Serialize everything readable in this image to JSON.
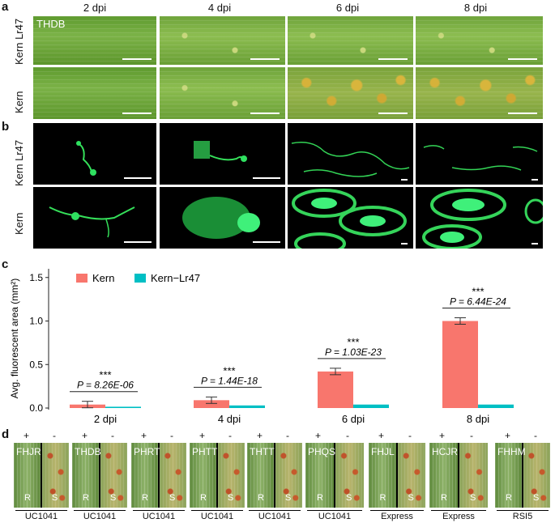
{
  "panel_labels": {
    "a": "a",
    "b": "b",
    "c": "c",
    "d": "d"
  },
  "time_labels": [
    "2 dpi",
    "4 dpi",
    "6 dpi",
    "8 dpi"
  ],
  "row_labels": {
    "kern_lr47": "Kern Lr47",
    "kern": "Kern"
  },
  "thdb_tag": "THDB",
  "chart_data": {
    "type": "bar",
    "ylabel": "Avg. fluorescent area (mm²)",
    "categories": [
      "2 dpi",
      "4 dpi",
      "6 dpi",
      "8 dpi"
    ],
    "ylim": [
      0,
      1.6
    ],
    "yticks": [
      "0.0",
      "0.5",
      "1.0",
      "1.5"
    ],
    "legend_position": "top-left",
    "series": [
      {
        "name": "Kern",
        "color": "#f8766d",
        "values": [
          0.04,
          0.09,
          0.42,
          1.0
        ]
      },
      {
        "name": "Kern−Lr47",
        "color": "#00bfc4",
        "values": [
          0.015,
          0.03,
          0.04,
          0.04
        ]
      }
    ],
    "annotations": [
      {
        "category": "2 dpi",
        "stars": "***",
        "p": "P = 8.26E-06"
      },
      {
        "category": "4 dpi",
        "stars": "***",
        "p": "P = 1.44E-18"
      },
      {
        "category": "6 dpi",
        "stars": "***",
        "p": "P = 1.03E-23"
      },
      {
        "category": "8 dpi",
        "stars": "***",
        "p": "P = 6.44E-24"
      }
    ]
  },
  "panel_d": {
    "plus": "+",
    "minus": "-",
    "r": "R",
    "s": "S",
    "items": [
      {
        "tag": "FHJR"
      },
      {
        "tag": "THDB"
      },
      {
        "tag": "PHRT"
      },
      {
        "tag": "PHTT"
      },
      {
        "tag": "THTT"
      },
      {
        "tag": "PHQS"
      },
      {
        "tag": "FHJL"
      },
      {
        "tag": "HCJR"
      },
      {
        "tag": "FHHM"
      }
    ],
    "groups": [
      "UC1041",
      "UC1041",
      "UC1041",
      "UC1041",
      "UC1041",
      "UC1041",
      "Express",
      "Express",
      "RSI5"
    ]
  }
}
